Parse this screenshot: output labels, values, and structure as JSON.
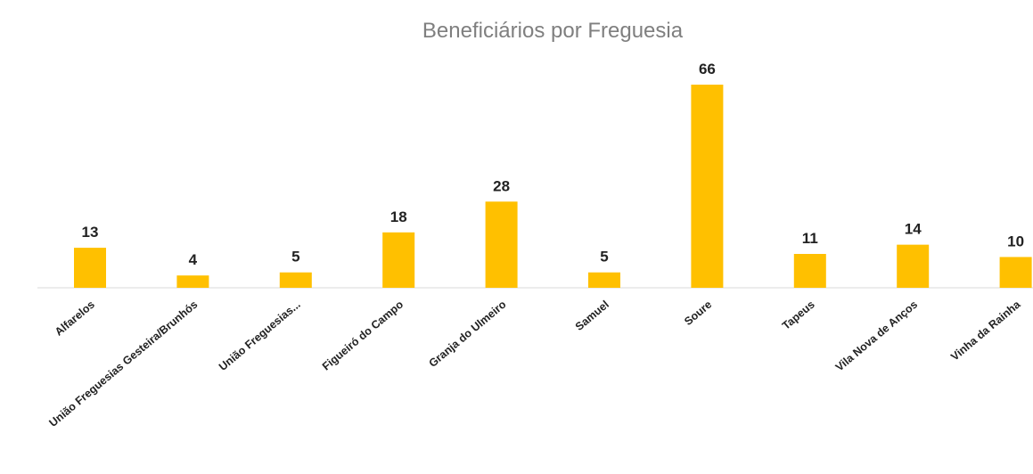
{
  "chart_data": {
    "type": "bar",
    "title": "Beneficiários por Freguesia",
    "categories": [
      "Alfarelos",
      "União Freguesias Gesteira/Brunhós",
      "União Freguesias...",
      "Figueiró do Campo",
      "Granja do Ulmeiro",
      "Samuel",
      "Soure",
      "Tapeus",
      "Vila Nova de Anços",
      "Vinha da Rainha"
    ],
    "values": [
      13,
      4,
      5,
      18,
      28,
      5,
      66,
      11,
      14,
      10
    ],
    "color": "#ffc000"
  }
}
